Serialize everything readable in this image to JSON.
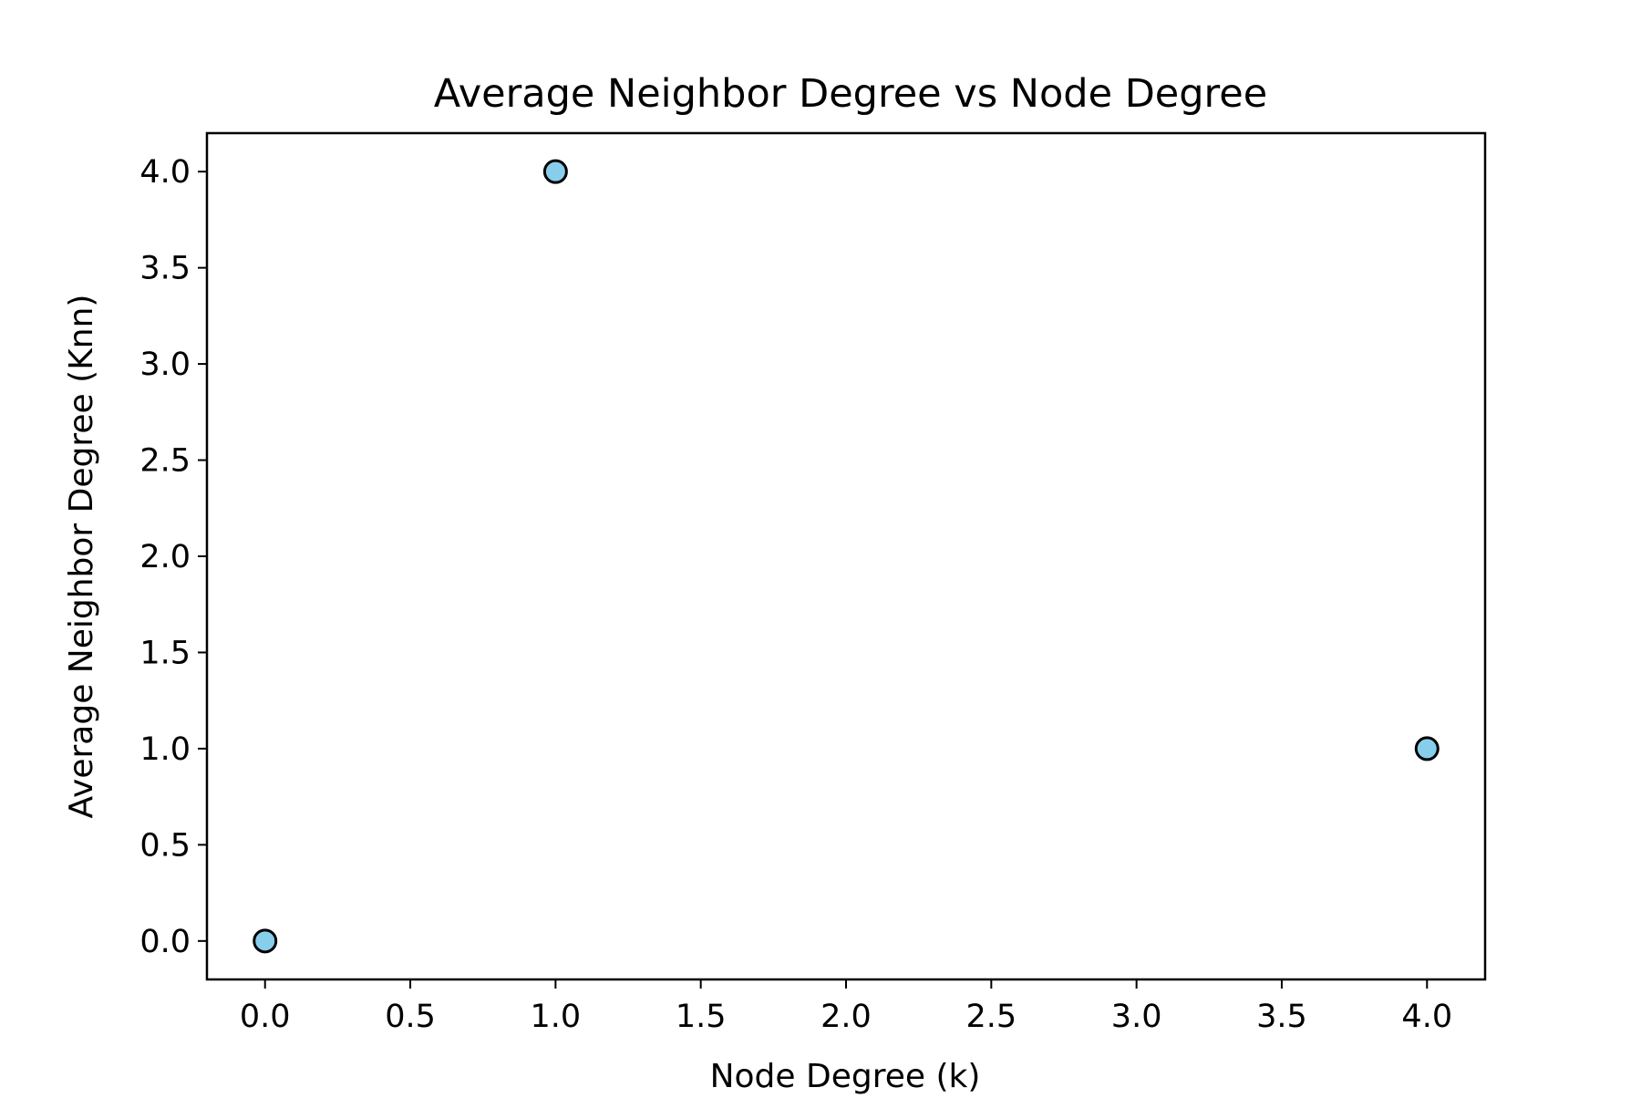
{
  "chart_data": {
    "type": "scatter",
    "title": "Average Neighbor Degree vs Node Degree",
    "xlabel": "Node Degree (k)",
    "ylabel": "Average Neighbor Degree (Knn)",
    "xlim": [
      -0.2,
      4.2
    ],
    "ylim": [
      -0.2,
      4.2
    ],
    "xticks": [
      "0.0",
      "0.5",
      "1.0",
      "1.5",
      "2.0",
      "2.5",
      "3.0",
      "3.5",
      "4.0"
    ],
    "yticks": [
      "0.0",
      "0.5",
      "1.0",
      "1.5",
      "2.0",
      "2.5",
      "3.0",
      "3.5",
      "4.0"
    ],
    "grid": false,
    "marker_color": "#87ceeb",
    "marker_edge_color": "#000000",
    "points": [
      {
        "x": 0,
        "y": 0
      },
      {
        "x": 1,
        "y": 4
      },
      {
        "x": 4,
        "y": 1
      }
    ]
  }
}
